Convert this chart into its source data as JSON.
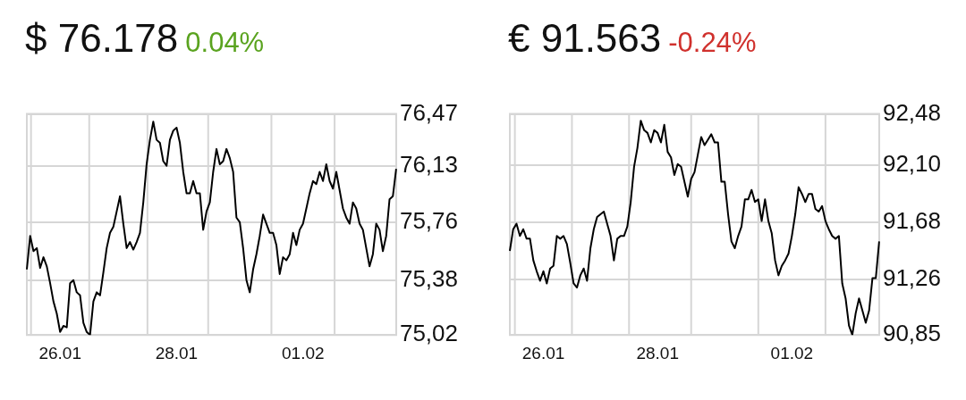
{
  "chart_data": [
    {
      "type": "line",
      "title": "$ 76.178",
      "subtitle": "0.04%",
      "grid": true,
      "marker": "none",
      "line_style": "solid",
      "categories": [
        null,
        null,
        null,
        null,
        null,
        null,
        null,
        null,
        null,
        null,
        "26.01",
        null,
        null,
        null,
        null,
        null,
        null,
        null,
        null,
        null,
        null,
        null,
        null,
        null,
        null,
        null,
        null,
        null,
        null,
        null,
        null,
        null,
        null,
        null,
        null,
        null,
        null,
        null,
        null,
        null,
        null,
        null,
        null,
        null,
        null,
        "28.01",
        null,
        null,
        null,
        null,
        null,
        null,
        null,
        null,
        null,
        null,
        null,
        null,
        null,
        null,
        null,
        null,
        null,
        null,
        null,
        null,
        null,
        null,
        null,
        null,
        null,
        null,
        null,
        null,
        null,
        null,
        null,
        null,
        null,
        null,
        null,
        null,
        null,
        "01.02",
        null,
        null,
        null,
        null,
        null,
        null,
        null,
        null,
        null,
        null,
        null,
        null,
        null,
        null,
        null,
        null,
        null,
        null,
        null,
        null,
        null,
        null,
        null,
        null,
        null,
        null,
        null,
        null
      ],
      "ylim": [
        75.02,
        76.47
      ],
      "yticks": [
        {
          "value": 75.02,
          "label": "75,02"
        },
        {
          "value": 75.38,
          "label": "75,38"
        },
        {
          "value": 75.76,
          "label": "75,76"
        },
        {
          "value": 76.13,
          "label": "76,13"
        },
        {
          "value": 76.47,
          "label": "76,47"
        }
      ],
      "series": [
        {
          "color": "#000000",
          "values": [
            75.45,
            75.67,
            75.57,
            75.59,
            75.46,
            75.53,
            75.47,
            75.36,
            75.24,
            75.16,
            75.04,
            75.08,
            75.07,
            75.36,
            75.38,
            75.3,
            75.28,
            75.1,
            75.04,
            75.02,
            75.24,
            75.3,
            75.28,
            75.43,
            75.59,
            75.69,
            75.73,
            75.83,
            75.93,
            75.75,
            75.59,
            75.63,
            75.58,
            75.63,
            75.69,
            75.89,
            76.14,
            76.3,
            76.42,
            76.3,
            76.28,
            76.16,
            76.13,
            76.3,
            76.36,
            76.38,
            76.28,
            76.09,
            75.95,
            75.95,
            76.03,
            75.95,
            75.95,
            75.71,
            75.83,
            75.89,
            76.09,
            76.24,
            76.14,
            76.16,
            76.24,
            76.18,
            76.09,
            75.79,
            75.76,
            75.59,
            75.38,
            75.3,
            75.45,
            75.55,
            75.67,
            75.81,
            75.75,
            75.69,
            75.69,
            75.61,
            75.42,
            75.53,
            75.51,
            75.55,
            75.69,
            75.61,
            75.71,
            75.75,
            75.85,
            75.95,
            76.03,
            76.01,
            76.09,
            76.03,
            76.14,
            76.03,
            75.98,
            76.09,
            75.97,
            75.85,
            75.79,
            75.75,
            75.89,
            75.85,
            75.75,
            75.71,
            75.59,
            75.47,
            75.55,
            75.75,
            75.71,
            75.57,
            75.67,
            75.91,
            75.93,
            76.11
          ]
        }
      ]
    },
    {
      "type": "line",
      "title": "€ 91.563",
      "subtitle": "-0.24%",
      "grid": true,
      "marker": "none",
      "line_style": "solid",
      "categories": [
        null,
        null,
        null,
        null,
        null,
        null,
        null,
        null,
        null,
        null,
        "26.01",
        null,
        null,
        null,
        null,
        null,
        null,
        null,
        null,
        null,
        null,
        null,
        null,
        null,
        null,
        null,
        null,
        null,
        null,
        null,
        null,
        null,
        null,
        null,
        null,
        null,
        null,
        null,
        null,
        null,
        null,
        null,
        null,
        null,
        "28.01",
        null,
        null,
        null,
        null,
        null,
        null,
        null,
        null,
        null,
        null,
        null,
        null,
        null,
        null,
        null,
        null,
        null,
        null,
        null,
        null,
        null,
        null,
        null,
        null,
        null,
        null,
        null,
        null,
        null,
        null,
        null,
        null,
        null,
        null,
        null,
        null,
        null,
        null,
        null,
        "01.02",
        null,
        null,
        null,
        null,
        null,
        null,
        null,
        null,
        null,
        null,
        null,
        null,
        null,
        null,
        null,
        null,
        null,
        null,
        null,
        null,
        null,
        null,
        null,
        null,
        null,
        null
      ],
      "ylim": [
        90.85,
        92.48
      ],
      "yticks": [
        {
          "value": 90.85,
          "label": "90,85"
        },
        {
          "value": 91.26,
          "label": "91,26"
        },
        {
          "value": 91.68,
          "label": "91,68"
        },
        {
          "value": 92.1,
          "label": "92,10"
        },
        {
          "value": 92.48,
          "label": "92,48"
        }
      ],
      "series": [
        {
          "color": "#000000",
          "values": [
            91.47,
            91.63,
            91.67,
            91.58,
            91.63,
            91.56,
            91.56,
            91.4,
            91.32,
            91.25,
            91.32,
            91.23,
            91.34,
            91.36,
            91.58,
            91.56,
            91.58,
            91.52,
            91.38,
            91.23,
            91.2,
            91.29,
            91.34,
            91.25,
            91.49,
            91.63,
            91.72,
            91.74,
            91.76,
            91.67,
            91.58,
            91.4,
            91.56,
            91.58,
            91.58,
            91.65,
            91.83,
            92.09,
            92.23,
            92.43,
            92.36,
            92.34,
            92.27,
            92.36,
            92.34,
            92.27,
            92.4,
            92.2,
            92.16,
            92.03,
            92.11,
            92.09,
            91.98,
            91.87,
            92.0,
            92.05,
            92.18,
            92.31,
            92.25,
            92.29,
            92.33,
            92.27,
            92.27,
            91.98,
            91.98,
            91.74,
            91.54,
            91.49,
            91.58,
            91.65,
            91.85,
            91.85,
            91.92,
            91.83,
            91.85,
            91.69,
            91.85,
            91.69,
            91.6,
            91.4,
            91.29,
            91.36,
            91.4,
            91.45,
            91.58,
            91.74,
            91.94,
            91.89,
            91.83,
            91.89,
            91.89,
            91.78,
            91.76,
            91.8,
            91.69,
            91.63,
            91.58,
            91.56,
            91.58,
            91.23,
            91.12,
            90.92,
            90.85,
            91.01,
            91.12,
            91.03,
            90.94,
            91.03,
            91.27,
            91.27,
            91.54
          ]
        }
      ]
    }
  ]
}
